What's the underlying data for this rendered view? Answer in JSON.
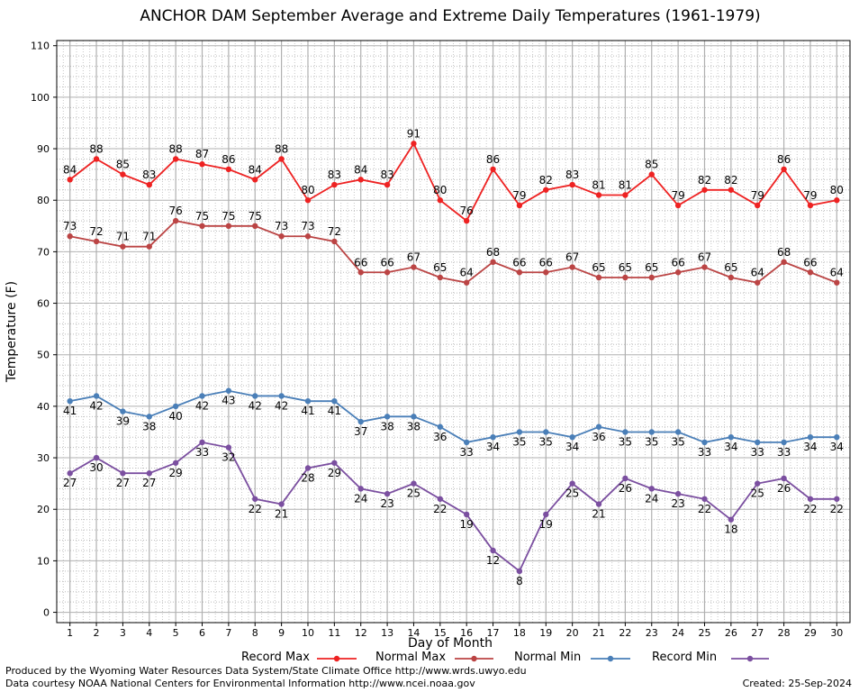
{
  "chart_data": {
    "type": "line",
    "title": "ANCHOR DAM September Average and Extreme Daily Temperatures (1961-1979)",
    "xlabel": "Day of Month",
    "ylabel": "Temperature (F)",
    "ylim": [
      -2,
      111
    ],
    "yticks": [
      0,
      10,
      20,
      30,
      40,
      50,
      60,
      70,
      80,
      90,
      100,
      110
    ],
    "grid": true,
    "legend_position": "bottom",
    "x": [
      1,
      2,
      3,
      4,
      5,
      6,
      7,
      8,
      9,
      10,
      11,
      12,
      13,
      14,
      15,
      16,
      17,
      18,
      19,
      20,
      21,
      22,
      23,
      24,
      25,
      26,
      27,
      28,
      29,
      30
    ],
    "series": [
      {
        "name": "Record Max",
        "color": "#ee2222",
        "label_position": "above",
        "values": [
          84,
          88,
          85,
          83,
          88,
          87,
          86,
          84,
          88,
          80,
          83,
          84,
          83,
          91,
          80,
          76,
          86,
          79,
          82,
          83,
          81,
          81,
          85,
          79,
          82,
          82,
          79,
          86,
          79,
          80
        ]
      },
      {
        "name": "Normal Max",
        "color": "#bb4444",
        "label_position": "above",
        "values": [
          73,
          72,
          71,
          71,
          76,
          75,
          75,
          75,
          73,
          73,
          72,
          66,
          66,
          67,
          65,
          64,
          68,
          66,
          66,
          67,
          65,
          65,
          65,
          66,
          67,
          65,
          64,
          68,
          66,
          64
        ]
      },
      {
        "name": "Normal Min",
        "color": "#4a7fb8",
        "label_position": "below",
        "values": [
          41,
          42,
          39,
          38,
          40,
          42,
          43,
          42,
          42,
          41,
          41,
          37,
          38,
          38,
          36,
          33,
          34,
          35,
          35,
          34,
          36,
          35,
          35,
          35,
          33,
          34,
          33,
          33,
          34,
          34
        ]
      },
      {
        "name": "Record Min",
        "color": "#7b4fa0",
        "label_position": "below",
        "values": [
          27,
          30,
          27,
          27,
          29,
          33,
          32,
          22,
          21,
          28,
          29,
          24,
          23,
          25,
          22,
          19,
          12,
          8,
          19,
          25,
          21,
          26,
          24,
          23,
          22,
          18,
          25,
          26,
          22,
          22
        ]
      }
    ]
  },
  "footer": {
    "line1": "Produced by the Wyoming Water Resources Data System/State Climate Office http://www.wrds.uwyo.edu",
    "line2": "Data courtesy NOAA National Centers for Environmental Information http://www.ncei.noaa.gov",
    "created": "Created:  25-Sep-2024"
  }
}
